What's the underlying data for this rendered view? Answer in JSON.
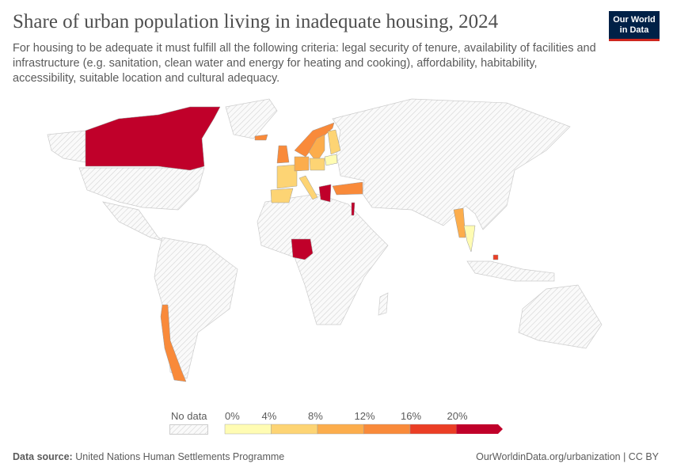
{
  "header": {
    "title": "Share of urban population living in inadequate housing, 2024",
    "subtitle": "For housing to be adequate it must fulfill all the following criteria: legal security of tenure, availability of facilities and infrastructure (e.g. sanitation, clean water and energy for heating and cooking), affordability, habitability, accessibility, suitable location and cultural adequacy.",
    "logo_line1": "Our World",
    "logo_line2": "in Data"
  },
  "legend": {
    "no_data_label": "No data",
    "ticks": [
      "0%",
      "4%",
      "8%",
      "12%",
      "16%",
      "20%"
    ],
    "bins": [
      {
        "from": 0,
        "to": 4,
        "color": "#fffcb3"
      },
      {
        "from": 4,
        "to": 8,
        "color": "#fdd474"
      },
      {
        "from": 8,
        "to": 12,
        "color": "#fcad4c"
      },
      {
        "from": 12,
        "to": 16,
        "color": "#f98a3a"
      },
      {
        "from": 16,
        "to": 20,
        "color": "#eb3e25"
      },
      {
        "from": 20,
        "to": null,
        "color": "#c0002a"
      }
    ],
    "no_data_color": "#e6e6e6"
  },
  "map": {
    "countries": [
      {
        "name": "Canada",
        "bin": 5
      },
      {
        "name": "Nigeria",
        "bin": 5
      },
      {
        "name": "Greece",
        "bin": 5
      },
      {
        "name": "Israel",
        "bin": 5
      },
      {
        "name": "Brunei",
        "bin": 4
      },
      {
        "name": "Chile",
        "bin": 3
      },
      {
        "name": "Turkey",
        "bin": 3
      },
      {
        "name": "Norway",
        "bin": 3
      },
      {
        "name": "United Kingdom",
        "bin": 3
      },
      {
        "name": "Iceland",
        "bin": 3
      },
      {
        "name": "Sweden",
        "bin": 2
      },
      {
        "name": "Germany",
        "bin": 2
      },
      {
        "name": "Myanmar",
        "bin": 2
      },
      {
        "name": "France",
        "bin": 1
      },
      {
        "name": "Spain",
        "bin": 1
      },
      {
        "name": "Italy",
        "bin": 1
      },
      {
        "name": "Finland",
        "bin": 1
      },
      {
        "name": "Poland",
        "bin": 1
      },
      {
        "name": "Belarus",
        "bin": 0
      },
      {
        "name": "Thailand",
        "bin": 0
      }
    ]
  },
  "footer": {
    "source_label": "Data source:",
    "source": "United Nations Human Settlements Programme",
    "url": "OurWorldinData.org/urbanization | CC BY"
  }
}
